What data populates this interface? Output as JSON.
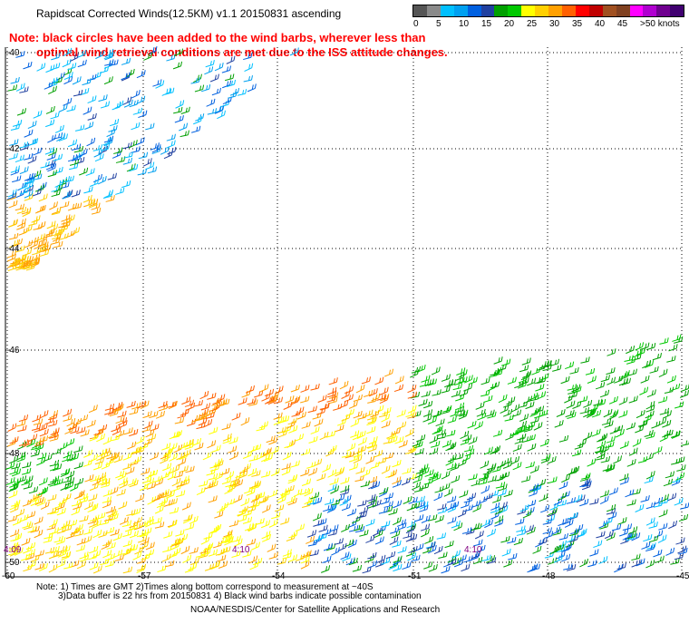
{
  "title": "Rapidscat Corrected Winds(12.5KM) v1.1 20150831 ascending",
  "note_line1": "Note: black circles have been added to the wind barbs, wherever less than",
  "note_line2": "optimal wind retrieval conditions are met due to the ISS attitude changes.",
  "legend": {
    "colors": [
      "#555555",
      "#8a8a8a",
      "#00c0ff",
      "#00a0f0",
      "#0060e0",
      "#2040a0",
      "#00a000",
      "#00c800",
      "#ffff00",
      "#ffd000",
      "#ffa000",
      "#ff6000",
      "#ff0000",
      "#c00000",
      "#a05020",
      "#804020",
      "#ff00ff",
      "#b000d0",
      "#700090",
      "#400070"
    ],
    "labels": [
      "0",
      "5",
      "10",
      "15",
      "20",
      "25",
      "30",
      "35",
      "40",
      "45",
      ">50 knots"
    ]
  },
  "lat_labels": [
    "-40",
    "-42",
    "-44",
    "-46",
    "-48",
    "-50"
  ],
  "lon_labels": [
    "-60",
    "-57",
    "-54",
    "-51",
    "-48",
    "-45"
  ],
  "time_labels": [
    "4:09",
    "4:10",
    "4:10"
  ],
  "footer_line1": "Note: 1) Times are GMT 2)Times along bottom correspond to measurement at ~40S",
  "footer_line2": "3)Data buffer is 22 hrs from 20150831 4) Black wind barbs indicate possible contamination",
  "footer_line3": "NOAA/NESDIS/Center for Satellite Applications and Research"
}
